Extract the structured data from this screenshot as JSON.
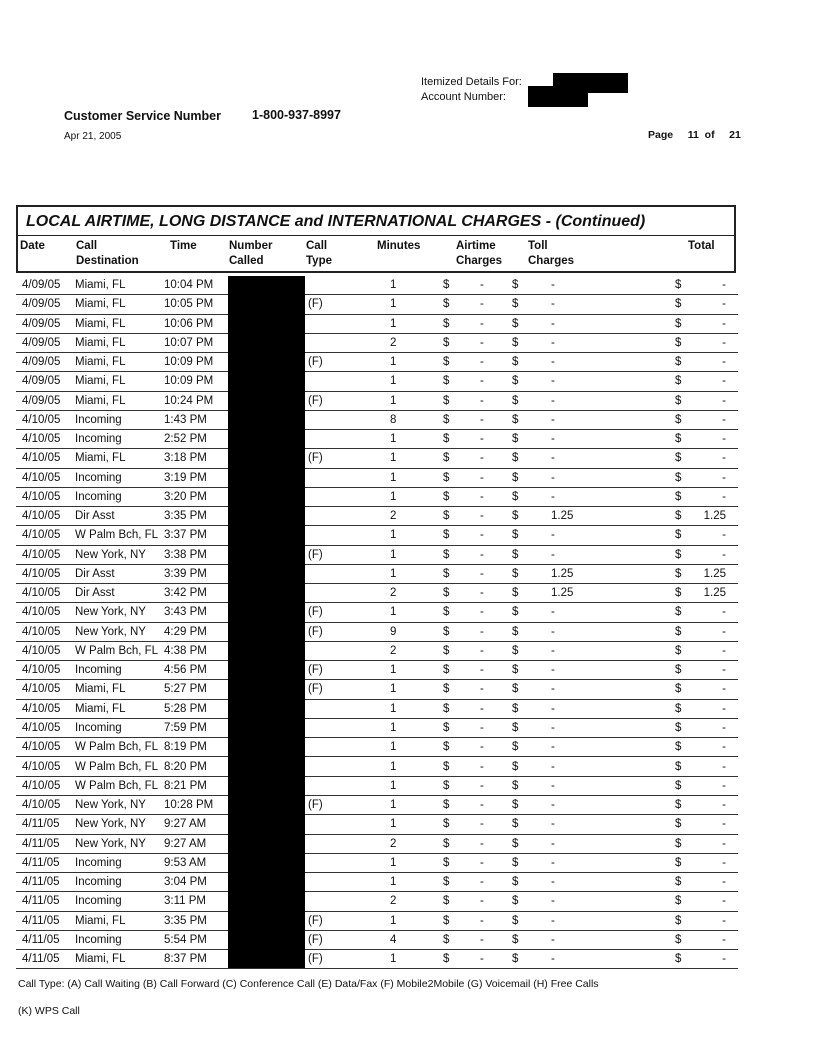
{
  "header": {
    "itemized_label": "Itemized Details For:",
    "account_label": "Account Number:",
    "customer_service_label": "Customer Service Number",
    "customer_service_number": "1-800-937-8997",
    "date": "Apr 21, 2005",
    "page_label": "Page",
    "page_current": "11",
    "page_of": "of",
    "page_total": "21"
  },
  "table": {
    "title": "LOCAL AIRTIME, LONG DISTANCE and INTERNATIONAL CHARGES  - (Continued)",
    "columns": {
      "date": "Date",
      "destination_1": "Call",
      "destination_2": "Destination",
      "time": "Time",
      "number_1": "Number",
      "number_2": "Called",
      "type_1": "Call",
      "type_2": "Type",
      "minutes": "Minutes",
      "airtime_1": "Airtime",
      "airtime_2": "Charges",
      "toll_1": "Toll",
      "toll_2": "Charges",
      "total": "Total"
    },
    "currency": "$",
    "rows": [
      [
        "4/09/05",
        "Miami, FL",
        "10:04 PM",
        "",
        "1",
        "-",
        "-",
        "-"
      ],
      [
        "4/09/05",
        "Miami, FL",
        "10:05 PM",
        "(F)",
        "1",
        "-",
        "-",
        "-"
      ],
      [
        "4/09/05",
        "Miami, FL",
        "10:06 PM",
        "",
        "1",
        "-",
        "-",
        "-"
      ],
      [
        "4/09/05",
        "Miami, FL",
        "10:07 PM",
        "",
        "2",
        "-",
        "-",
        "-"
      ],
      [
        "4/09/05",
        "Miami, FL",
        "10:09 PM",
        "(F)",
        "1",
        "-",
        "-",
        "-"
      ],
      [
        "4/09/05",
        "Miami, FL",
        "10:09 PM",
        "",
        "1",
        "-",
        "-",
        "-"
      ],
      [
        "4/09/05",
        "Miami, FL",
        "10:24 PM",
        "(F)",
        "1",
        "-",
        "-",
        "-"
      ],
      [
        "4/10/05",
        "Incoming",
        "1:43 PM",
        "",
        "8",
        "-",
        "-",
        "-"
      ],
      [
        "4/10/05",
        "Incoming",
        "2:52 PM",
        "",
        "1",
        "-",
        "-",
        "-"
      ],
      [
        "4/10/05",
        "Miami, FL",
        "3:18 PM",
        "(F)",
        "1",
        "-",
        "-",
        "-"
      ],
      [
        "4/10/05",
        "Incoming",
        "3:19 PM",
        "",
        "1",
        "-",
        "-",
        "-"
      ],
      [
        "4/10/05",
        "Incoming",
        "3:20 PM",
        "",
        "1",
        "-",
        "-",
        "-"
      ],
      [
        "4/10/05",
        "Dir Asst",
        "3:35 PM",
        "",
        "2",
        "-",
        "1.25",
        "1.25"
      ],
      [
        "4/10/05",
        "W Palm Bch, FL",
        "3:37 PM",
        "",
        "1",
        "-",
        "-",
        "-"
      ],
      [
        "4/10/05",
        "New York, NY",
        "3:38 PM",
        "(F)",
        "1",
        "-",
        "-",
        "-"
      ],
      [
        "4/10/05",
        "Dir Asst",
        "3:39 PM",
        "",
        "1",
        "-",
        "1.25",
        "1.25"
      ],
      [
        "4/10/05",
        "Dir Asst",
        "3:42 PM",
        "",
        "2",
        "-",
        "1.25",
        "1.25"
      ],
      [
        "4/10/05",
        "New York, NY",
        "3:43 PM",
        "(F)",
        "1",
        "-",
        "-",
        "-"
      ],
      [
        "4/10/05",
        "New York, NY",
        "4:29 PM",
        "(F)",
        "9",
        "-",
        "-",
        "-"
      ],
      [
        "4/10/05",
        "W Palm Bch, FL",
        "4:38 PM",
        "",
        "2",
        "-",
        "-",
        "-"
      ],
      [
        "4/10/05",
        "Incoming",
        "4:56 PM",
        "(F)",
        "1",
        "-",
        "-",
        "-"
      ],
      [
        "4/10/05",
        "Miami, FL",
        "5:27 PM",
        "(F)",
        "1",
        "-",
        "-",
        "-"
      ],
      [
        "4/10/05",
        "Miami, FL",
        "5:28 PM",
        "",
        "1",
        "-",
        "-",
        "-"
      ],
      [
        "4/10/05",
        "Incoming",
        "7:59 PM",
        "",
        "1",
        "-",
        "-",
        "-"
      ],
      [
        "4/10/05",
        "W Palm Bch, FL",
        "8:19 PM",
        "",
        "1",
        "-",
        "-",
        "-"
      ],
      [
        "4/10/05",
        "W Palm Bch, FL",
        "8:20 PM",
        "",
        "1",
        "-",
        "-",
        "-"
      ],
      [
        "4/10/05",
        "W Palm Bch, FL",
        "8:21 PM",
        "",
        "1",
        "-",
        "-",
        "-"
      ],
      [
        "4/10/05",
        "New York, NY",
        "10:28 PM",
        "(F)",
        "1",
        "-",
        "-",
        "-"
      ],
      [
        "4/11/05",
        "New York, NY",
        "9:27 AM",
        "",
        "1",
        "-",
        "-",
        "-"
      ],
      [
        "4/11/05",
        "New York, NY",
        "9:27 AM",
        "",
        "2",
        "-",
        "-",
        "-"
      ],
      [
        "4/11/05",
        "Incoming",
        "9:53 AM",
        "",
        "1",
        "-",
        "-",
        "-"
      ],
      [
        "4/11/05",
        "Incoming",
        "3:04 PM",
        "",
        "1",
        "-",
        "-",
        "-"
      ],
      [
        "4/11/05",
        "Incoming",
        "3:11 PM",
        "",
        "2",
        "-",
        "-",
        "-"
      ],
      [
        "4/11/05",
        "Miami, FL",
        "3:35 PM",
        "(F)",
        "1",
        "-",
        "-",
        "-"
      ],
      [
        "4/11/05",
        "Incoming",
        "5:54 PM",
        "(F)",
        "4",
        "-",
        "-",
        "-"
      ],
      [
        "4/11/05",
        "Miami, FL",
        "8:37 PM",
        "(F)",
        "1",
        "-",
        "-",
        "-"
      ]
    ]
  },
  "footer": {
    "legend_line1": "Call Type: (A) Call Waiting (B) Call Forward (C) Conference Call (E) Data/Fax (F) Mobile2Mobile (G) Voicemail (H) Free Calls",
    "legend_line2": "(K) WPS Call"
  }
}
